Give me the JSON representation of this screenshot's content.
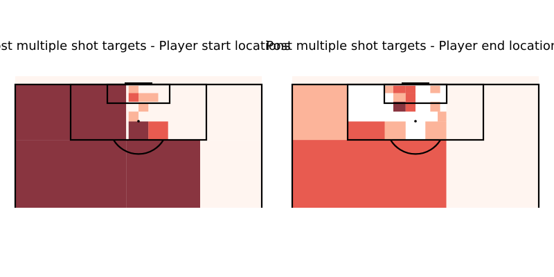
{
  "chart_data": [
    {
      "type": "heatmap",
      "title": "Post multiple shot targets - Player start locations",
      "colormap": {
        "low": "#fff5f0",
        "mid": "#fcb49a",
        "high": "#e85b50",
        "max": "#893540"
      },
      "cells": [
        {
          "x": [
            0,
            4.5
          ],
          "y": [
            0,
            4.5
          ],
          "level": 3
        },
        {
          "x": [
            0,
            4.5
          ],
          "y": [
            4.5,
            10
          ],
          "level": 3
        },
        {
          "x": [
            4.5,
            7.5
          ],
          "y": [
            4.5,
            10
          ],
          "level": 3
        },
        {
          "x": [
            7.5,
            10
          ],
          "y": [
            4.5,
            10
          ],
          "level": 0
        },
        {
          "x": [
            7.5,
            10
          ],
          "y": [
            0,
            4.5
          ],
          "level": 0
        },
        {
          "x": [
            4.5,
            7.5
          ],
          "y": [
            0,
            4.5
          ],
          "level": 0
        },
        {
          "x": [
            4.6,
            5.0
          ],
          "y": [
            0.1,
            0.7
          ],
          "level": 1
        },
        {
          "x": [
            4.6,
            5.0
          ],
          "y": [
            0.7,
            1.4
          ],
          "level": 2
        },
        {
          "x": [
            5.0,
            5.8
          ],
          "y": [
            0.7,
            1.4
          ],
          "level": 1
        },
        {
          "x": [
            5.0,
            5.4
          ],
          "y": [
            1.5,
            2.2
          ],
          "level": 1
        },
        {
          "x": [
            4.6,
            5.0
          ],
          "y": [
            2.2,
            3.0
          ],
          "level": 1
        },
        {
          "x": [
            4.6,
            5.4
          ],
          "y": [
            3.0,
            4.5
          ],
          "level": 3
        },
        {
          "x": [
            5.4,
            6.2
          ],
          "y": [
            3.0,
            4.5
          ],
          "level": 2
        }
      ]
    },
    {
      "type": "heatmap",
      "title": "Post multiple shot targets - Player end locations",
      "colormap": {
        "low": "#fff5f0",
        "mid": "#fcb49a",
        "high": "#e85b50",
        "max": "#893540"
      },
      "cells": [
        {
          "x": [
            0,
            2.25
          ],
          "y": [
            0,
            4.5
          ],
          "level": 1
        },
        {
          "x": [
            0,
            3.75
          ],
          "y": [
            4.5,
            10
          ],
          "level": 2
        },
        {
          "x": [
            3.75,
            6.25
          ],
          "y": [
            4.5,
            10
          ],
          "level": 2
        },
        {
          "x": [
            2.25,
            3.75
          ],
          "y": [
            3.0,
            4.5
          ],
          "level": 2
        },
        {
          "x": [
            3.75,
            4.6
          ],
          "y": [
            3.0,
            4.5
          ],
          "level": 1
        },
        {
          "x": [
            5.4,
            6.25
          ],
          "y": [
            3.0,
            4.5
          ],
          "level": 1
        },
        {
          "x": [
            6.25,
            10
          ],
          "y": [
            0,
            10
          ],
          "level": 0
        },
        {
          "x": [
            3.75,
            4.1
          ],
          "y": [
            0.1,
            0.7
          ],
          "level": 1
        },
        {
          "x": [
            4.1,
            4.6
          ],
          "y": [
            0.1,
            0.7
          ],
          "level": 2
        },
        {
          "x": [
            4.6,
            5.0
          ],
          "y": [
            0.1,
            0.7
          ],
          "level": 2
        },
        {
          "x": [
            5.6,
            6.0
          ],
          "y": [
            0.1,
            0.7
          ],
          "level": 1
        },
        {
          "x": [
            4.1,
            4.6
          ],
          "y": [
            0.7,
            1.4
          ],
          "level": 1
        },
        {
          "x": [
            4.6,
            5.0
          ],
          "y": [
            0.7,
            1.4
          ],
          "level": 2
        },
        {
          "x": [
            4.1,
            4.6
          ],
          "y": [
            1.4,
            2.2
          ],
          "level": 3
        },
        {
          "x": [
            4.6,
            5.0
          ],
          "y": [
            1.4,
            2.2
          ],
          "level": 2
        },
        {
          "x": [
            5.6,
            6.0
          ],
          "y": [
            1.4,
            2.2
          ],
          "level": 1
        },
        {
          "x": [
            5.9,
            6.25
          ],
          "y": [
            2.2,
            3.0
          ],
          "level": 1
        }
      ]
    }
  ]
}
